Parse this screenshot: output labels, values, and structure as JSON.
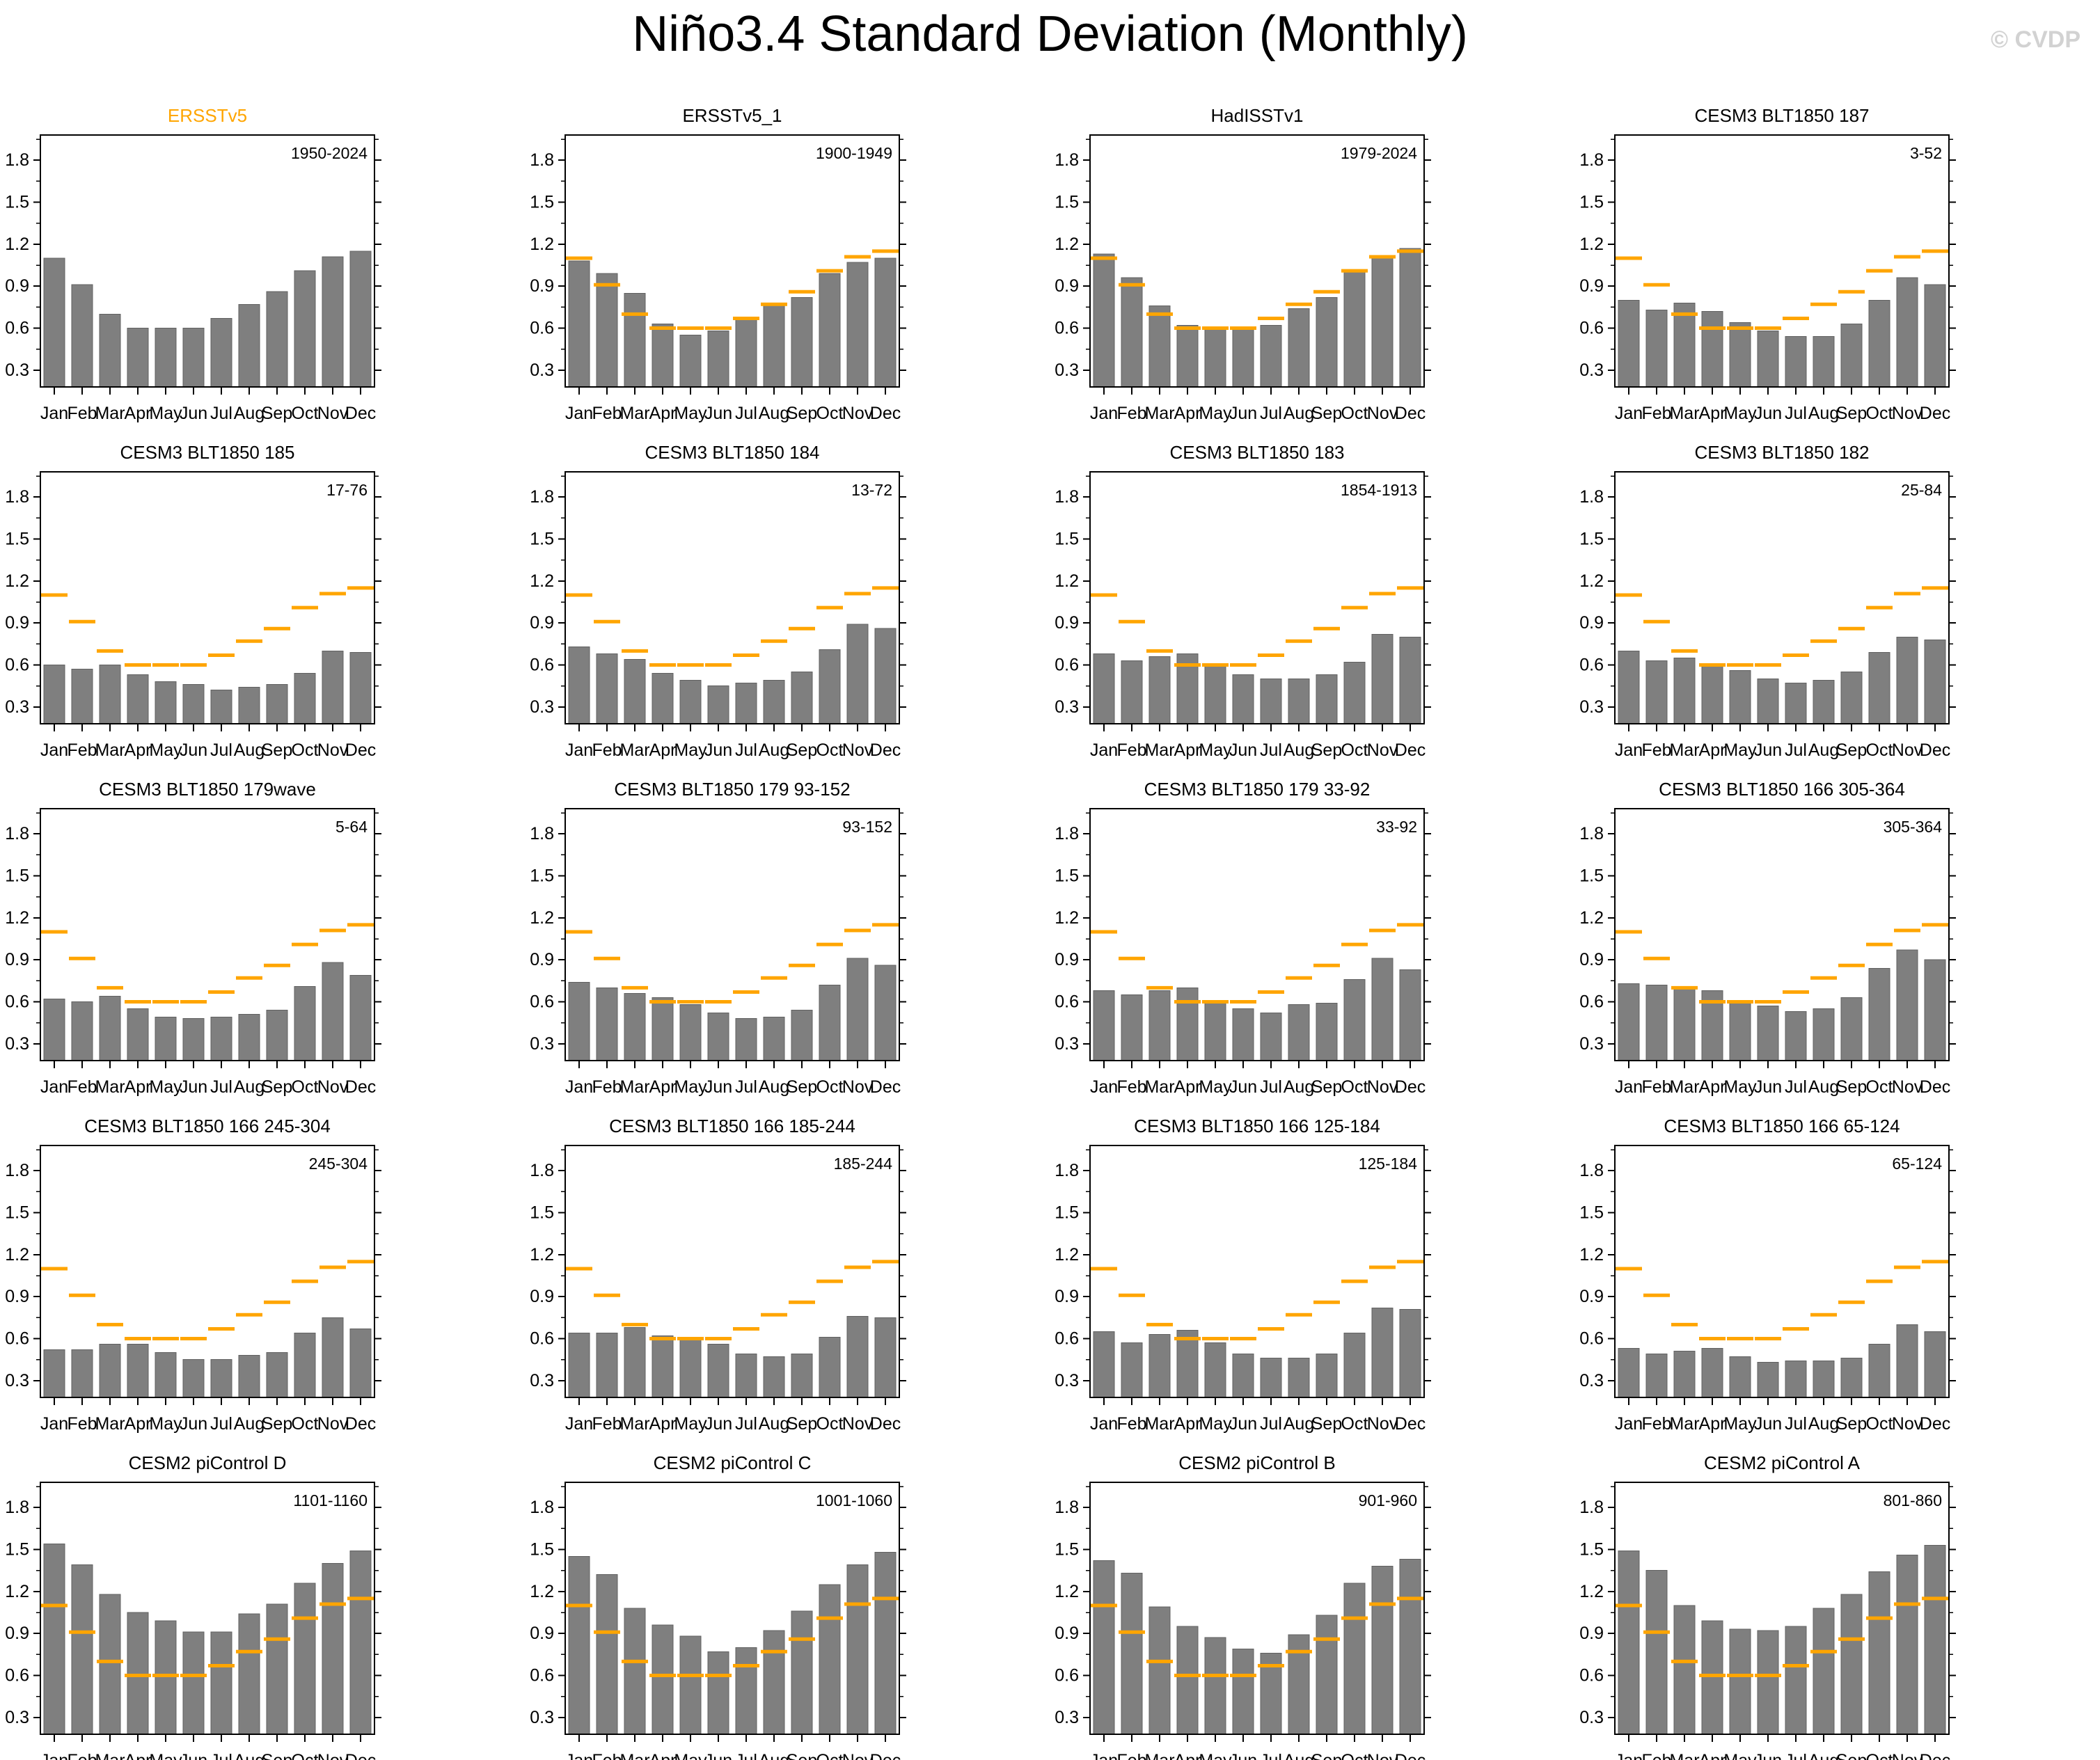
{
  "header": {
    "title": "Niño3.4 Standard Deviation (Monthly)",
    "watermark": "© CVDP"
  },
  "chart_data": {
    "type": "bar",
    "layout": "5 rows x 4 columns of monthly-standard-deviation bar panels",
    "categories": [
      "Jan",
      "Feb",
      "Mar",
      "Apr",
      "May",
      "Jun",
      "Jul",
      "Aug",
      "Sep",
      "Oct",
      "Nov",
      "Dec"
    ],
    "ylim": [
      0.18,
      1.98
    ],
    "yticks": [
      0.3,
      0.6,
      0.9,
      1.2,
      1.5,
      1.8
    ],
    "yticks_minor": [
      0.45,
      0.75,
      1.05,
      1.35,
      1.65,
      1.95
    ],
    "grid": "off",
    "bar_color": "#7f7f7f",
    "bar_edge_color": "#606060",
    "reference_series": {
      "name": "ERSSTv5 reference climatology",
      "color": "#FFA500",
      "values": [
        1.1,
        0.91,
        0.7,
        0.6,
        0.6,
        0.6,
        0.67,
        0.77,
        0.86,
        1.01,
        1.11,
        1.15
      ]
    },
    "panels": [
      {
        "title": "ERSSTv5",
        "title_color": "#FFA500",
        "period": "1950-2024",
        "show_reference": false,
        "values": [
          1.1,
          0.91,
          0.7,
          0.6,
          0.6,
          0.6,
          0.67,
          0.77,
          0.86,
          1.01,
          1.11,
          1.15
        ]
      },
      {
        "title": "ERSSTv5_1",
        "title_color": "#000000",
        "period": "1900-1949",
        "show_reference": true,
        "values": [
          1.08,
          0.99,
          0.85,
          0.63,
          0.55,
          0.58,
          0.66,
          0.78,
          0.82,
          0.99,
          1.07,
          1.1
        ]
      },
      {
        "title": "HadISSTv1",
        "title_color": "#000000",
        "period": "1979-2024",
        "show_reference": true,
        "values": [
          1.13,
          0.96,
          0.76,
          0.62,
          0.61,
          0.6,
          0.62,
          0.74,
          0.82,
          1.0,
          1.12,
          1.17
        ]
      },
      {
        "title": "CESM3 BLT1850 187",
        "title_color": "#000000",
        "period": "3-52",
        "show_reference": true,
        "values": [
          0.8,
          0.73,
          0.78,
          0.72,
          0.64,
          0.58,
          0.54,
          0.54,
          0.63,
          0.8,
          0.96,
          0.91
        ]
      },
      {
        "title": "CESM3 BLT1850 185",
        "title_color": "#000000",
        "period": "17-76",
        "show_reference": true,
        "values": [
          0.6,
          0.57,
          0.6,
          0.53,
          0.48,
          0.46,
          0.42,
          0.44,
          0.46,
          0.54,
          0.7,
          0.69
        ]
      },
      {
        "title": "CESM3 BLT1850 184",
        "title_color": "#000000",
        "period": "13-72",
        "show_reference": true,
        "values": [
          0.73,
          0.68,
          0.64,
          0.54,
          0.49,
          0.45,
          0.47,
          0.49,
          0.55,
          0.71,
          0.89,
          0.86
        ]
      },
      {
        "title": "CESM3 BLT1850 183",
        "title_color": "#000000",
        "period": "1854-1913",
        "show_reference": true,
        "values": [
          0.68,
          0.63,
          0.66,
          0.68,
          0.59,
          0.53,
          0.5,
          0.5,
          0.53,
          0.62,
          0.82,
          0.8
        ]
      },
      {
        "title": "CESM3 BLT1850 182",
        "title_color": "#000000",
        "period": "25-84",
        "show_reference": true,
        "values": [
          0.7,
          0.63,
          0.65,
          0.6,
          0.56,
          0.5,
          0.47,
          0.49,
          0.55,
          0.69,
          0.8,
          0.78
        ]
      },
      {
        "title": "CESM3 BLT1850 179wave",
        "title_color": "#000000",
        "period": "5-64",
        "show_reference": true,
        "values": [
          0.62,
          0.6,
          0.64,
          0.55,
          0.49,
          0.48,
          0.49,
          0.51,
          0.54,
          0.71,
          0.88,
          0.79
        ]
      },
      {
        "title": "CESM3 BLT1850 179 93-152",
        "title_color": "#000000",
        "period": "93-152",
        "show_reference": true,
        "values": [
          0.74,
          0.7,
          0.66,
          0.63,
          0.58,
          0.52,
          0.48,
          0.49,
          0.54,
          0.72,
          0.91,
          0.86
        ]
      },
      {
        "title": "CESM3 BLT1850 179 33-92",
        "title_color": "#000000",
        "period": "33-92",
        "show_reference": true,
        "values": [
          0.68,
          0.65,
          0.68,
          0.7,
          0.61,
          0.55,
          0.52,
          0.58,
          0.59,
          0.76,
          0.91,
          0.83
        ]
      },
      {
        "title": "CESM3 BLT1850 166 305-364",
        "title_color": "#000000",
        "period": "305-364",
        "show_reference": true,
        "values": [
          0.73,
          0.72,
          0.71,
          0.68,
          0.61,
          0.57,
          0.53,
          0.55,
          0.63,
          0.84,
          0.97,
          0.9
        ]
      },
      {
        "title": "CESM3 BLT1850 166 245-304",
        "title_color": "#000000",
        "period": "245-304",
        "show_reference": true,
        "values": [
          0.52,
          0.52,
          0.56,
          0.56,
          0.5,
          0.45,
          0.45,
          0.48,
          0.5,
          0.64,
          0.75,
          0.67
        ]
      },
      {
        "title": "CESM3 BLT1850 166 185-244",
        "title_color": "#000000",
        "period": "185-244",
        "show_reference": true,
        "values": [
          0.64,
          0.64,
          0.68,
          0.62,
          0.59,
          0.56,
          0.49,
          0.47,
          0.49,
          0.61,
          0.76,
          0.75
        ]
      },
      {
        "title": "CESM3 BLT1850 166 125-184",
        "title_color": "#000000",
        "period": "125-184",
        "show_reference": true,
        "values": [
          0.65,
          0.57,
          0.63,
          0.66,
          0.57,
          0.49,
          0.46,
          0.46,
          0.49,
          0.64,
          0.82,
          0.81
        ]
      },
      {
        "title": "CESM3 BLT1850 166 65-124",
        "title_color": "#000000",
        "period": "65-124",
        "show_reference": true,
        "values": [
          0.53,
          0.49,
          0.51,
          0.53,
          0.47,
          0.43,
          0.44,
          0.44,
          0.46,
          0.56,
          0.7,
          0.65
        ]
      },
      {
        "title": "CESM2 piControl D",
        "title_color": "#000000",
        "period": "1101-1160",
        "show_reference": true,
        "values": [
          1.54,
          1.39,
          1.18,
          1.05,
          0.99,
          0.91,
          0.91,
          1.04,
          1.11,
          1.26,
          1.4,
          1.49
        ]
      },
      {
        "title": "CESM2 piControl C",
        "title_color": "#000000",
        "period": "1001-1060",
        "show_reference": true,
        "values": [
          1.45,
          1.32,
          1.08,
          0.96,
          0.88,
          0.77,
          0.8,
          0.92,
          1.06,
          1.25,
          1.39,
          1.48
        ]
      },
      {
        "title": "CESM2 piControl B",
        "title_color": "#000000",
        "period": "901-960",
        "show_reference": true,
        "values": [
          1.42,
          1.33,
          1.09,
          0.95,
          0.87,
          0.79,
          0.76,
          0.89,
          1.03,
          1.26,
          1.38,
          1.43
        ]
      },
      {
        "title": "CESM2 piControl A",
        "title_color": "#000000",
        "period": "801-860",
        "show_reference": true,
        "values": [
          1.49,
          1.35,
          1.1,
          0.99,
          0.93,
          0.92,
          0.95,
          1.08,
          1.18,
          1.34,
          1.46,
          1.53
        ]
      }
    ]
  }
}
